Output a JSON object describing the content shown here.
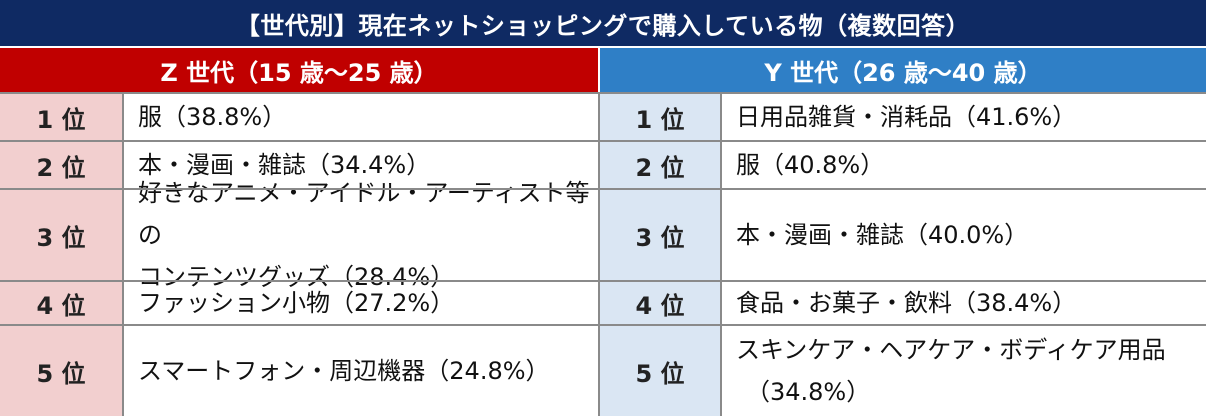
{
  "title": "【世代別】現在ネットショッピングで購入している物（複数回答）",
  "z_header": "Z 世代（15 歳～25 歳）",
  "y_header": "Y 世代（26 歳～40 歳）",
  "z_rows": [
    {
      "rank": "1 位",
      "lines": [
        "服（38.8%）"
      ]
    },
    {
      "rank": "2 位",
      "lines": [
        "本・漫画・雑誌（34.4%）"
      ]
    },
    {
      "rank": "3 位",
      "lines": [
        "好きなアニメ・アイドル・アーティスト等の",
        "コンテンツグッズ（28.4%）"
      ]
    },
    {
      "rank": "4 位",
      "lines": [
        "ファッション小物（27.2%）"
      ]
    },
    {
      "rank": "5 位",
      "lines": [
        "スマートフォン・周辺機器（24.8%）"
      ]
    }
  ],
  "y_rows": [
    {
      "rank": "1 位",
      "lines": [
        "日用品雑貨・消耗品（41.6%）"
      ]
    },
    {
      "rank": "2 位",
      "lines": [
        "服（40.8%）"
      ]
    },
    {
      "rank": "3 位",
      "lines": [
        "本・漫画・雑誌（40.0%）"
      ]
    },
    {
      "rank": "4 位",
      "lines": [
        "食品・お菓子・飲料（38.4%）"
      ]
    },
    {
      "rank": "5 位",
      "lines": [
        "スキンケア・ヘアケア・ボディケア用品",
        "（34.8%）"
      ]
    }
  ]
}
